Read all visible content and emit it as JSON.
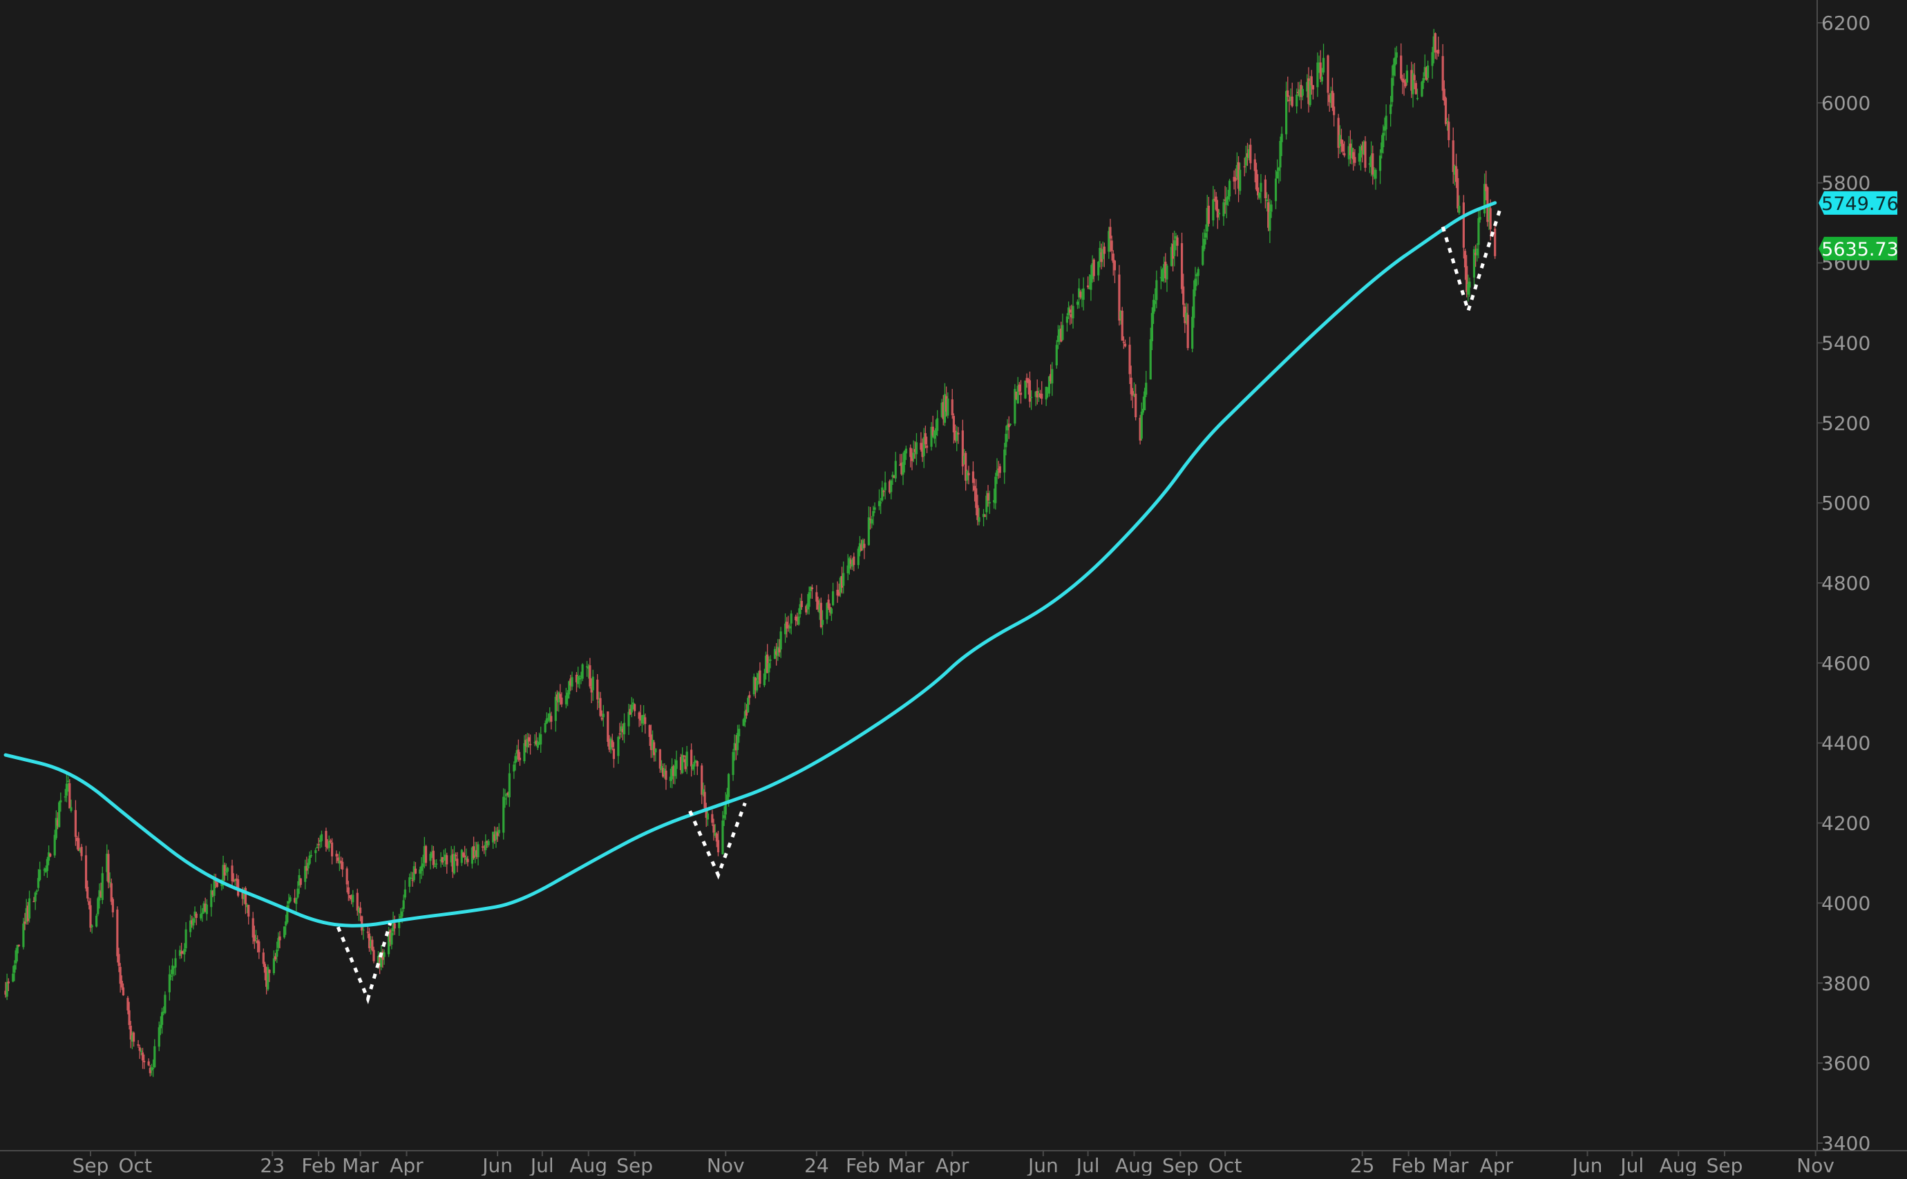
{
  "chart_data": {
    "type": "candlestick",
    "title": "",
    "xlabel": "",
    "ylabel": "",
    "ylim": [
      3400,
      6200
    ],
    "x_range": [
      "2022-07-06",
      "2025-11-30"
    ],
    "y_ticks": [
      {
        "value": 3400,
        "label": "3400"
      },
      {
        "value": 3600,
        "label": "3600"
      },
      {
        "value": 3800,
        "label": "3800"
      },
      {
        "value": 4000,
        "label": "4000"
      },
      {
        "value": 4200,
        "label": "4200"
      },
      {
        "value": 4400,
        "label": "4400"
      },
      {
        "value": 4600,
        "label": "4600"
      },
      {
        "value": 4800,
        "label": "4800"
      },
      {
        "value": 5000,
        "label": "5000"
      },
      {
        "value": 5200,
        "label": "5200"
      },
      {
        "value": 5400,
        "label": "5400"
      },
      {
        "value": 5600,
        "label": "5600"
      },
      {
        "value": 5800,
        "label": "5800"
      },
      {
        "value": 6000,
        "label": "6000"
      },
      {
        "value": 6200,
        "label": "6200"
      }
    ],
    "x_ticks": [
      {
        "date": "2022-09-01",
        "label": "Sep"
      },
      {
        "date": "2022-10-01",
        "label": "Oct"
      },
      {
        "date": "2023-01-01",
        "label": "23"
      },
      {
        "date": "2023-02-01",
        "label": "Feb"
      },
      {
        "date": "2023-03-01",
        "label": "Mar"
      },
      {
        "date": "2023-04-01",
        "label": "Apr"
      },
      {
        "date": "2023-06-01",
        "label": "Jun"
      },
      {
        "date": "2023-07-01",
        "label": "Jul"
      },
      {
        "date": "2023-08-01",
        "label": "Aug"
      },
      {
        "date": "2023-09-01",
        "label": "Sep"
      },
      {
        "date": "2023-11-01",
        "label": "Nov"
      },
      {
        "date": "2024-01-01",
        "label": "24"
      },
      {
        "date": "2024-02-01",
        "label": "Feb"
      },
      {
        "date": "2024-03-01",
        "label": "Mar"
      },
      {
        "date": "2024-04-01",
        "label": "Apr"
      },
      {
        "date": "2024-06-01",
        "label": "Jun"
      },
      {
        "date": "2024-07-01",
        "label": "Jul"
      },
      {
        "date": "2024-08-01",
        "label": "Aug"
      },
      {
        "date": "2024-09-01",
        "label": "Sep"
      },
      {
        "date": "2024-10-01",
        "label": "Oct"
      },
      {
        "date": "2025-01-01",
        "label": "25"
      },
      {
        "date": "2025-02-01",
        "label": "Feb"
      },
      {
        "date": "2025-03-01",
        "label": "Mar"
      },
      {
        "date": "2025-04-01",
        "label": "Apr"
      },
      {
        "date": "2025-06-01",
        "label": "Jun"
      },
      {
        "date": "2025-07-01",
        "label": "Jul"
      },
      {
        "date": "2025-08-01",
        "label": "Aug"
      },
      {
        "date": "2025-09-01",
        "label": "Sep"
      },
      {
        "date": "2025-11-01",
        "label": "Nov"
      }
    ],
    "price_path": [
      [
        "2022-07-06",
        3780
      ],
      [
        "2022-07-22",
        3990
      ],
      [
        "2022-08-05",
        4140
      ],
      [
        "2022-08-16",
        4300
      ],
      [
        "2022-08-24",
        4140
      ],
      [
        "2022-09-02",
        3930
      ],
      [
        "2022-09-12",
        4110
      ],
      [
        "2022-09-21",
        3800
      ],
      [
        "2022-09-30",
        3640
      ],
      [
        "2022-10-12",
        3580
      ],
      [
        "2022-10-21",
        3770
      ],
      [
        "2022-10-31",
        3880
      ],
      [
        "2022-11-10",
        3960
      ],
      [
        "2022-11-30",
        4080
      ],
      [
        "2022-12-13",
        4020
      ],
      [
        "2022-12-28",
        3810
      ],
      [
        "2023-01-12",
        3990
      ],
      [
        "2023-02-02",
        4170
      ],
      [
        "2023-02-15",
        4100
      ],
      [
        "2023-03-01",
        3960
      ],
      [
        "2023-03-13",
        3850
      ],
      [
        "2023-03-28",
        3990
      ],
      [
        "2023-04-12",
        4120
      ],
      [
        "2023-05-02",
        4100
      ],
      [
        "2023-05-31",
        4170
      ],
      [
        "2023-06-14",
        4370
      ],
      [
        "2023-06-30",
        4420
      ],
      [
        "2023-07-19",
        4560
      ],
      [
        "2023-07-31",
        4590
      ],
      [
        "2023-08-18",
        4370
      ],
      [
        "2023-09-01",
        4500
      ],
      [
        "2023-09-21",
        4330
      ],
      [
        "2023-10-10",
        4360
      ],
      [
        "2023-10-27",
        4130
      ],
      [
        "2023-11-06",
        4370
      ],
      [
        "2023-11-20",
        4540
      ],
      [
        "2023-12-14",
        4700
      ],
      [
        "2023-12-29",
        4770
      ],
      [
        "2024-01-05",
        4700
      ],
      [
        "2024-01-31",
        4900
      ],
      [
        "2024-02-22",
        5080
      ],
      [
        "2024-03-15",
        5150
      ],
      [
        "2024-03-28",
        5250
      ],
      [
        "2024-04-19",
        4970
      ],
      [
        "2024-04-30",
        5040
      ],
      [
        "2024-05-15",
        5300
      ],
      [
        "2024-05-31",
        5260
      ],
      [
        "2024-06-18",
        5480
      ],
      [
        "2024-07-16",
        5660
      ],
      [
        "2024-07-25",
        5400
      ],
      [
        "2024-08-05",
        5180
      ],
      [
        "2024-08-16",
        5550
      ],
      [
        "2024-08-30",
        5640
      ],
      [
        "2024-09-06",
        5410
      ],
      [
        "2024-09-19",
        5720
      ],
      [
        "2024-09-30",
        5760
      ],
      [
        "2024-10-18",
        5860
      ],
      [
        "2024-10-31",
        5710
      ],
      [
        "2024-11-11",
        6000
      ],
      [
        "2024-11-26",
        6030
      ],
      [
        "2024-12-06",
        6090
      ],
      [
        "2024-12-18",
        5880
      ],
      [
        "2024-12-31",
        5880
      ],
      [
        "2025-01-13",
        5840
      ],
      [
        "2025-01-23",
        6110
      ],
      [
        "2025-02-07",
        6030
      ],
      [
        "2025-02-19",
        6140
      ],
      [
        "2025-03-03",
        5850
      ],
      [
        "2025-03-10",
        5610
      ],
      [
        "2025-03-13",
        5530
      ],
      [
        "2025-03-24",
        5770
      ],
      [
        "2025-03-31",
        5630
      ]
    ],
    "series": [
      {
        "type": "line",
        "color": "#36e0e8",
        "points": [
          [
            "2022-07-06",
            4370
          ],
          [
            "2022-08-20",
            4330
          ],
          [
            "2022-10-01",
            4200
          ],
          [
            "2022-11-15",
            4070
          ],
          [
            "2023-01-01",
            4000
          ],
          [
            "2023-02-01",
            3950
          ],
          [
            "2023-03-01",
            3940
          ],
          [
            "2023-04-01",
            3960
          ],
          [
            "2023-05-15",
            3980
          ],
          [
            "2023-06-15",
            4000
          ],
          [
            "2023-08-01",
            4100
          ],
          [
            "2023-09-15",
            4190
          ],
          [
            "2023-11-01",
            4250
          ],
          [
            "2023-12-01",
            4290
          ],
          [
            "2024-01-15",
            4380
          ],
          [
            "2024-03-15",
            4530
          ],
          [
            "2024-04-15",
            4640
          ],
          [
            "2024-06-15",
            4760
          ],
          [
            "2024-08-15",
            4990
          ],
          [
            "2024-09-15",
            5150
          ],
          [
            "2024-10-15",
            5260
          ],
          [
            "2024-12-01",
            5430
          ],
          [
            "2025-01-15",
            5580
          ],
          [
            "2025-02-15",
            5660
          ],
          [
            "2025-03-10",
            5720
          ],
          [
            "2025-03-31",
            5750
          ]
        ]
      }
    ],
    "annotations": [
      {
        "type": "dotted-v",
        "color": "#ffffff",
        "points": [
          [
            "2023-02-14",
            3940
          ],
          [
            "2023-03-06",
            3760
          ],
          [
            "2023-03-21",
            3950
          ]
        ]
      },
      {
        "type": "dotted-v",
        "color": "#ffffff",
        "points": [
          [
            "2023-10-08",
            4230
          ],
          [
            "2023-10-27",
            4070
          ],
          [
            "2023-11-14",
            4250
          ]
        ]
      },
      {
        "type": "dotted-v",
        "color": "#ffffff",
        "points": [
          [
            "2025-02-24",
            5690
          ],
          [
            "2025-03-13",
            5480
          ],
          [
            "2025-04-03",
            5730
          ]
        ]
      }
    ],
    "price_labels": [
      {
        "value": 5749.76,
        "label": "5749.76",
        "background": "#1fe4ee",
        "color": "#0c2b2d"
      },
      {
        "value": 5635.73,
        "label": "5635.73",
        "background": "#16b033",
        "color": "#ffffff"
      }
    ],
    "colors": {
      "background": "#1b1b1b",
      "up": "#2fa537",
      "down": "#d0595d",
      "axis_text": "#9a9a9a",
      "axis_line": "#4a4a4a"
    }
  }
}
